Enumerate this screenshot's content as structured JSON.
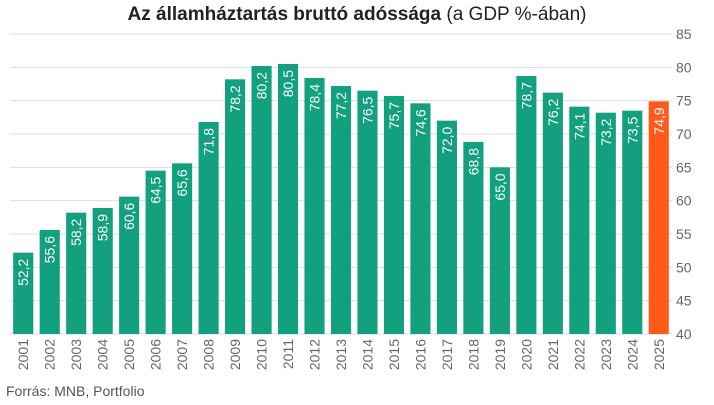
{
  "chart_data": {
    "type": "bar",
    "title": "Az államháztartás bruttó adóssága",
    "subtitle": "(a GDP %-ában)",
    "source": "Forrás: MNB, Portfolio",
    "categories": [
      "2001",
      "2002",
      "2003",
      "2004",
      "2005",
      "2006",
      "2007",
      "2008",
      "2009",
      "2010",
      "2011",
      "2012",
      "2013",
      "2014",
      "2015",
      "2016",
      "2017",
      "2018",
      "2019",
      "2020",
      "2021",
      "2022",
      "2023",
      "2024",
      "2025"
    ],
    "values": [
      52.2,
      55.6,
      58.2,
      58.9,
      60.6,
      64.5,
      65.6,
      71.8,
      78.2,
      80.2,
      80.5,
      78.4,
      77.2,
      76.5,
      75.7,
      74.6,
      72.0,
      68.8,
      65.0,
      78.7,
      76.2,
      74.1,
      73.2,
      73.5,
      74.9
    ],
    "labels": [
      "52,2",
      "55,6",
      "58,2",
      "58,9",
      "60,6",
      "64,5",
      "65,6",
      "71,8",
      "78,2",
      "80,2",
      "80,5",
      "78,4",
      "77,2",
      "76,5",
      "75,7",
      "74,6",
      "72,0",
      "68,8",
      "65,0",
      "78,7",
      "76,2",
      "74,1",
      "73,2",
      "73,5",
      "74,9"
    ],
    "highlight_index": 24,
    "ylim": [
      40,
      85
    ],
    "yticks": [
      40,
      45,
      50,
      55,
      60,
      65,
      70,
      75,
      80,
      85
    ],
    "y_axis_side": "right",
    "grid": true,
    "colors": {
      "bar": "#12a07e",
      "highlight": "#ff5a1a",
      "grid": "#dddddd"
    }
  }
}
